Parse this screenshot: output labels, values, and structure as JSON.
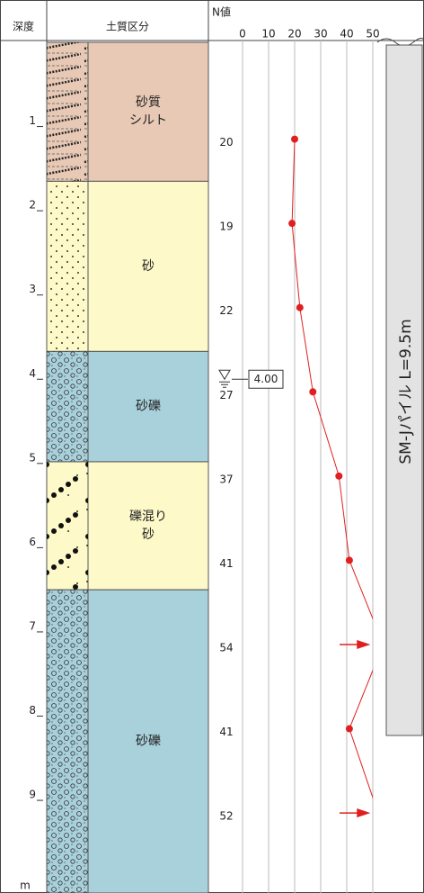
{
  "chart_data": {
    "type": "boring-log",
    "headers": {
      "depth": "深度",
      "soil": "土質区分",
      "n_value": "N値"
    },
    "depth_unit": "m",
    "ylim": [
      0,
      10.1
    ],
    "yticks": [
      1,
      2,
      3,
      4,
      5,
      6,
      7,
      8,
      9
    ],
    "layers": [
      {
        "name": [
          "砂質",
          "シルト"
        ],
        "top": 0,
        "bottom": 1.65,
        "color": "#e8c9b5",
        "pattern": "silt"
      },
      {
        "name": [
          "砂"
        ],
        "top": 1.65,
        "bottom": 3.67,
        "color": "#fdf9c9",
        "pattern": "sand"
      },
      {
        "name": [
          "砂礫"
        ],
        "top": 3.67,
        "bottom": 4.98,
        "color": "#a9d1dc",
        "pattern": "gravel"
      },
      {
        "name": [
          "礫混り",
          "砂"
        ],
        "top": 4.98,
        "bottom": 6.5,
        "color": "#fdf9c9",
        "pattern": "gravelly-sand"
      },
      {
        "name": [
          "砂礫"
        ],
        "top": 6.5,
        "bottom": 10.1,
        "color": "#a9d1dc",
        "pattern": "gravel"
      }
    ],
    "n_depths": [
      1.15,
      2.15,
      3.15,
      4.15,
      5.15,
      6.15,
      7.15,
      8.15,
      9.15
    ],
    "n_values": [
      20,
      19,
      22,
      27,
      37,
      41,
      54,
      41,
      52
    ],
    "n_color": "#e02020",
    "xlim": [
      0,
      50
    ],
    "xticks": [
      0,
      10,
      20,
      30,
      40,
      50
    ],
    "grid": true,
    "water_level": {
      "value": 4,
      "label": "4.00"
    },
    "pile": {
      "label": "SM-Jパイル  L=9.5m"
    }
  }
}
